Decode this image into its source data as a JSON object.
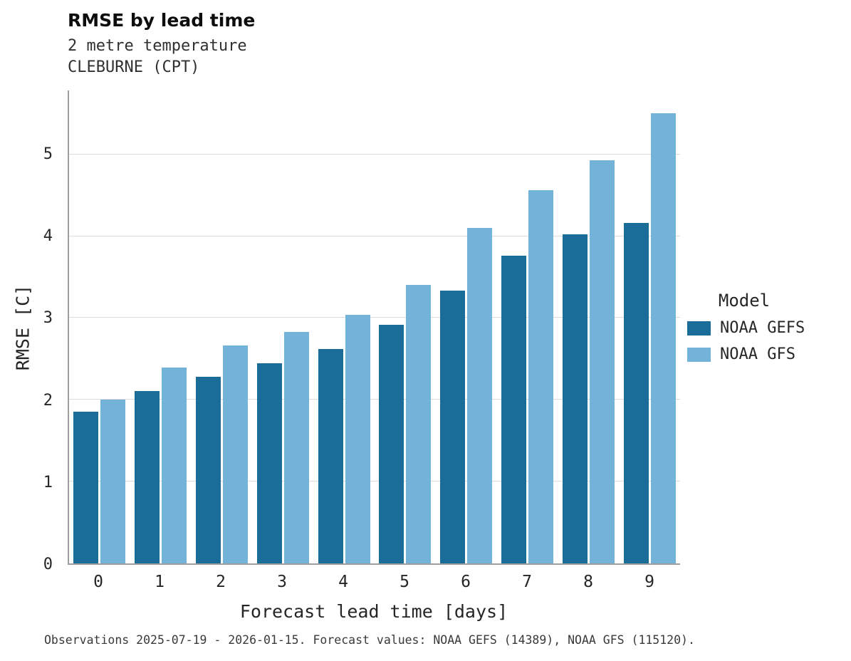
{
  "header": {
    "title": "RMSE by lead time",
    "subtitle1": "2 metre temperature",
    "subtitle2": "CLEBURNE (CPT)"
  },
  "footer": {
    "text": "Observations 2025-07-19 - 2026-01-15. Forecast values: NOAA GEFS (14389), NOAA GFS (115120)."
  },
  "legend": {
    "title": "Model",
    "entries": [
      {
        "label": "NOAA GEFS",
        "color": "#1b6d99"
      },
      {
        "label": "NOAA GFS",
        "color": "#73b3da"
      }
    ]
  },
  "chart_data": {
    "type": "bar",
    "title": "RMSE by lead time",
    "subtitle": "2 metre temperature — CLEBURNE (CPT)",
    "xlabel": "Forecast lead time [days]",
    "ylabel": "RMSE [C]",
    "categories": [
      "0",
      "1",
      "2",
      "3",
      "4",
      "5",
      "6",
      "7",
      "8",
      "9"
    ],
    "series": [
      {
        "name": "NOAA GEFS",
        "color": "#1b6d99",
        "values": [
          1.85,
          2.11,
          2.28,
          2.45,
          2.62,
          2.92,
          3.33,
          3.76,
          4.02,
          4.16
        ]
      },
      {
        "name": "NOAA GFS",
        "color": "#73b3da",
        "values": [
          2.0,
          2.39,
          2.66,
          2.83,
          3.04,
          3.4,
          4.1,
          4.56,
          4.93,
          5.5
        ]
      }
    ],
    "ylim": [
      0,
      5.78
    ],
    "yticks": [
      0,
      1,
      2,
      3,
      4,
      5
    ],
    "grid": "horizontal",
    "legend_position": "right"
  }
}
